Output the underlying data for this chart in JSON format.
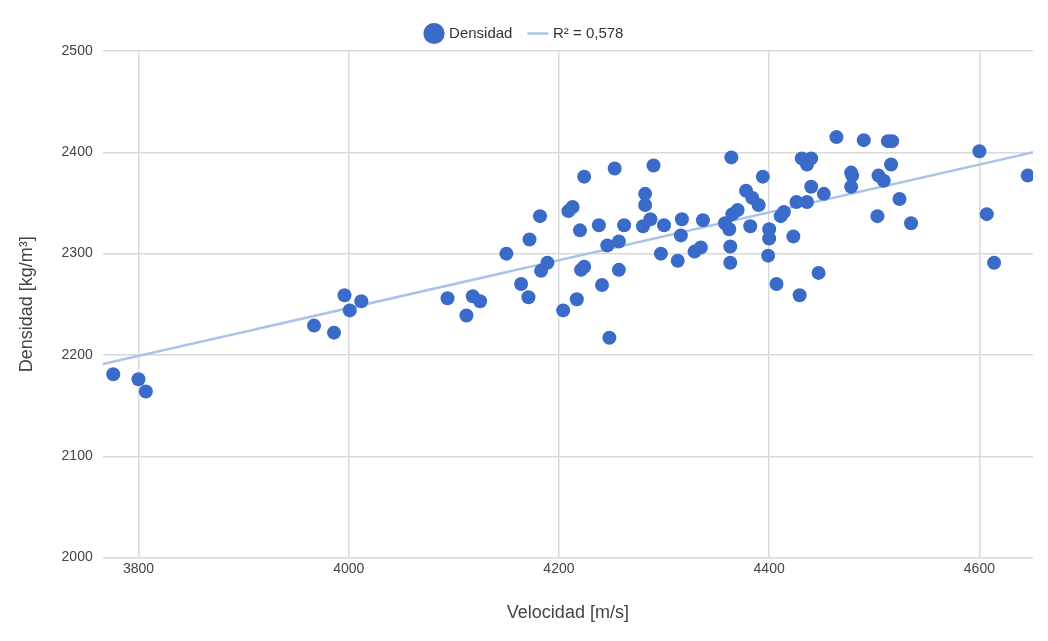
{
  "chart_data": {
    "type": "scatter",
    "xlabel": "Velocidad [m/s]",
    "ylabel": "Densidad [kg/m³]",
    "xlim": [
      3766,
      4651
    ],
    "ylim": [
      2000,
      2500
    ],
    "xticks": [
      3800,
      4000,
      4200,
      4400,
      4600
    ],
    "yticks": [
      2000,
      2100,
      2200,
      2300,
      2400,
      2500
    ],
    "grid": true,
    "legend": "top",
    "marker": "circle",
    "series": [
      {
        "name": "Densidad",
        "color": "#3a6bc8",
        "x": [
          3776,
          3800,
          3807,
          3967,
          3986,
          3996,
          4001,
          4012,
          4094,
          4112,
          4118,
          4125,
          4164,
          4171,
          4150,
          4172,
          4182,
          4183,
          4189,
          4204,
          4209,
          4213,
          4217,
          4220,
          4221,
          4224,
          4224,
          4238,
          4241,
          4248,
          4246,
          4253,
          4257,
          4257,
          4262,
          4280,
          4282,
          4282,
          4287,
          4290,
          4297,
          4300,
          4313,
          4317,
          4316,
          4329,
          4335,
          4337,
          4364,
          4394,
          4358,
          4365,
          4370,
          4362,
          4363,
          4363,
          4382,
          4378,
          4384,
          4390,
          4400,
          4400,
          4399,
          4407,
          4411,
          4414,
          4423,
          4426,
          4429,
          4431,
          4436,
          4440,
          4436,
          4440,
          4447,
          4452,
          4464,
          4478,
          4479,
          4478,
          4490,
          4503,
          4504,
          4509,
          4513,
          4517,
          4516,
          4524,
          4535,
          4600,
          4607,
          4614,
          4646
        ],
        "values": [
          2181,
          2176,
          2164,
          2229,
          2222,
          2259,
          2244,
          2253,
          2256,
          2239,
          2258,
          2253,
          2270,
          2257,
          2300,
          2314,
          2337,
          2283,
          2291,
          2244,
          2342,
          2346,
          2255,
          2323,
          2284,
          2287,
          2376,
          2328,
          2269,
          2217,
          2308,
          2384,
          2312,
          2284,
          2328,
          2327,
          2359,
          2348,
          2334,
          2387,
          2300,
          2328,
          2293,
          2334,
          2318,
          2302,
          2306,
          2333,
          2395,
          2376,
          2330,
          2339,
          2343,
          2324,
          2307,
          2291,
          2327,
          2362,
          2355,
          2348,
          2324,
          2315,
          2298,
          2270,
          2337,
          2341,
          2317,
          2351,
          2259,
          2394,
          2388,
          2394,
          2351,
          2366,
          2281,
          2359,
          2415,
          2380,
          2377,
          2366,
          2412,
          2337,
          2377,
          2372,
          2411,
          2411,
          2388,
          2354,
          2330,
          2401,
          2339,
          2291,
          2377
        ]
      },
      {
        "name": "R² = 0,578",
        "type": "line",
        "color": "#a9c4e8",
        "x": [
          3766,
          4651
        ],
        "values": [
          2191,
          2400
        ],
        "marker": "none"
      }
    ]
  }
}
